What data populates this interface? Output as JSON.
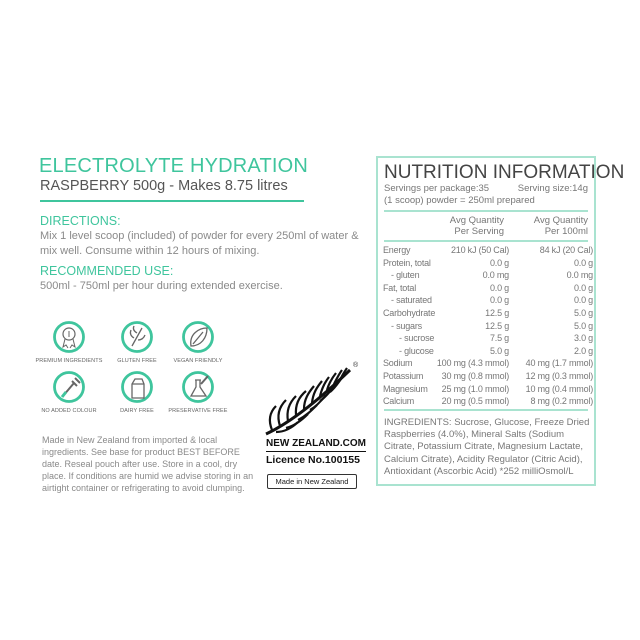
{
  "product": {
    "title": "ELECTROLYTE HYDRATION",
    "subtitle": "RASPBERRY 500g - Makes 8.75 litres",
    "directions_heading": "DIRECTIONS:",
    "directions_text": "Mix 1 level scoop (included) of powder for every 250ml of water & mix well. Consume within 12 hours of mixing.",
    "recommended_heading": "RECOMMENDED USE:",
    "recommended_text": "500ml - 750ml per hour during extended exercise."
  },
  "badges": [
    {
      "label": "PREMIUM INGREDIENTS",
      "icon": "award-ribbon-icon"
    },
    {
      "label": "GLUTEN FREE",
      "icon": "wheat-crossed-icon"
    },
    {
      "label": "VEGAN FRIENDLY",
      "icon": "leaf-icon"
    },
    {
      "label": "NO ADDED COLOUR",
      "icon": "dropper-icon"
    },
    {
      "label": "DAIRY FREE",
      "icon": "milk-carton-icon"
    },
    {
      "label": "PRESERVATIVE FREE",
      "icon": "flask-icon"
    }
  ],
  "storage_text": "Made in New Zealand from imported & local ingredients. See base for product BEST BEFORE date. Reseal pouch after use. Store in a cool, dry place. If conditions are humid we advise storing in an airtight container or refrigerating to avoid clumping.",
  "fern_logo": {
    "site": "NEW ZEALAND.COM",
    "licence": "Licence No.100155",
    "registered_mark": "®",
    "made_in": "Made in New Zealand"
  },
  "colors": {
    "accent": "#3fc59d",
    "border": "#a9e3d0"
  },
  "nutrition": {
    "title": "NUTRITION INFORMATION",
    "servings_per_package": "Servings per package:35",
    "serving_size": "Serving size:14g",
    "scoop_note": "(1 scoop) powder = 250ml prepared",
    "col_serving_1": "Avg Quantity",
    "col_serving_2": "Per Serving",
    "col_100_1": "Avg Quantity",
    "col_100_2": "Per 100ml",
    "rows": [
      {
        "label": "Energy",
        "serving": "210 kJ (50 Cal)",
        "per100": "84 kJ (20 Cal)",
        "indent": 0
      },
      {
        "label": "Protein, total",
        "serving": "0.0 g",
        "per100": "0.0 g",
        "indent": 0
      },
      {
        "label": "- gluten",
        "serving": "0.0 mg",
        "per100": "0.0 mg",
        "indent": 1
      },
      {
        "label": "Fat, total",
        "serving": "0.0 g",
        "per100": "0.0 g",
        "indent": 0
      },
      {
        "label": "- saturated",
        "serving": "0.0 g",
        "per100": "0.0 g",
        "indent": 1
      },
      {
        "label": "Carbohydrate",
        "serving": "12.5 g",
        "per100": "5.0 g",
        "indent": 0
      },
      {
        "label": "- sugars",
        "serving": "12.5 g",
        "per100": "5.0 g",
        "indent": 1
      },
      {
        "label": "- sucrose",
        "serving": "7.5 g",
        "per100": "3.0 g",
        "indent": 2
      },
      {
        "label": "- glucose",
        "serving": "5.0 g",
        "per100": "2.0 g",
        "indent": 2
      },
      {
        "label": "Sodium",
        "serving": "100 mg (4.3 mmol)",
        "per100": "40 mg (1.7 mmol)",
        "indent": 0
      },
      {
        "label": "Potassium",
        "serving": "30 mg (0.8 mmol)",
        "per100": "12 mg (0.3 mmol)",
        "indent": 0
      },
      {
        "label": "Magnesium",
        "serving": "25 mg (1.0 mmol)",
        "per100": "10 mg (0.4 mmol)",
        "indent": 0
      },
      {
        "label": "Calcium",
        "serving": "20 mg (0.5 mmol)",
        "per100": "8 mg (0.2 mmol)",
        "indent": 0
      }
    ],
    "ingredients": "INGREDIENTS: Sucrose, Glucose, Freeze Dried Raspberries (4.0%), Mineral Salts (Sodium Citrate, Potassium Citrate, Magnesium Lactate, Calcium Citrate), Acidity Regulator (Citric Acid), Antioxidant (Ascorbic Acid)  *252 milliOsmol/L"
  }
}
